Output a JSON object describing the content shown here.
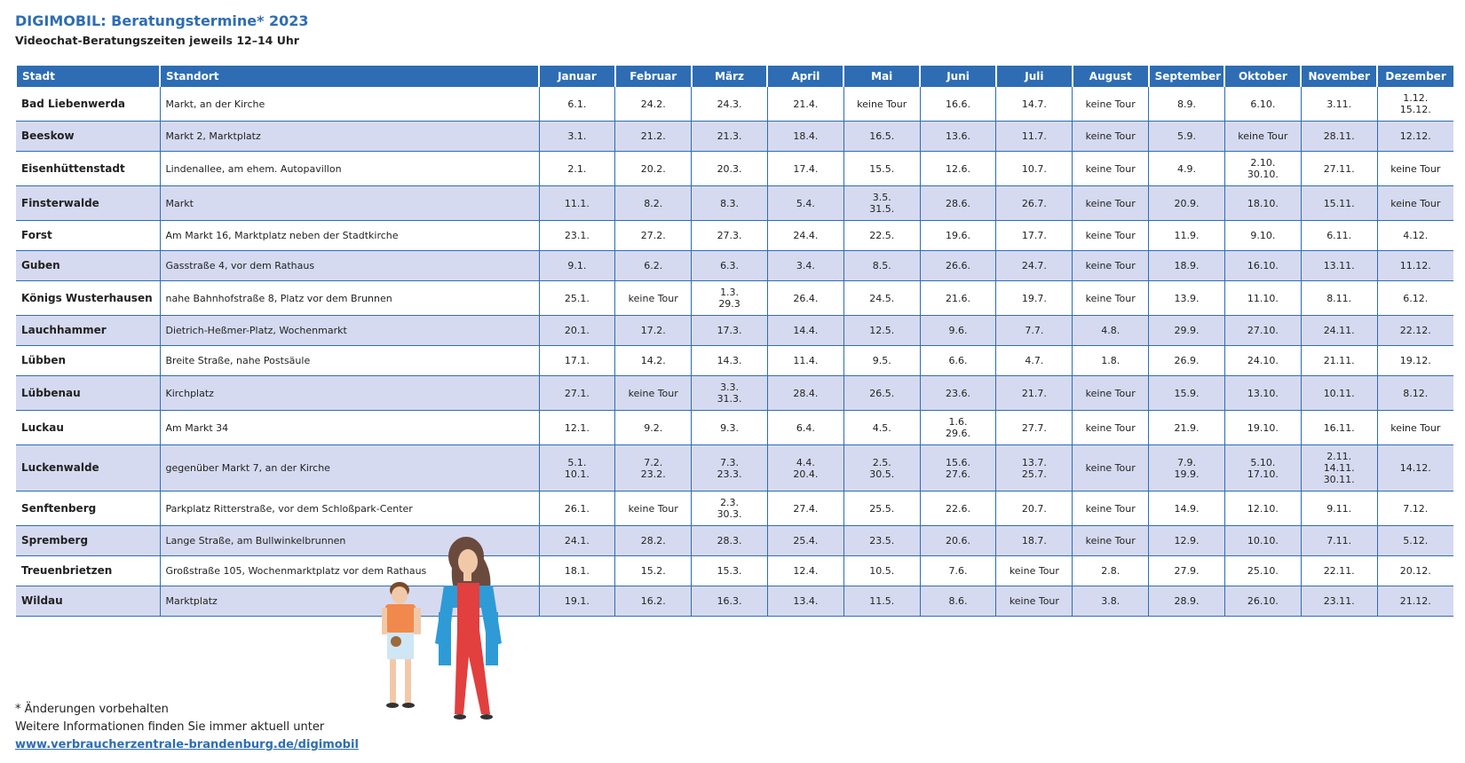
{
  "header": {
    "title": "DIGIMOBIL: Beratungstermine* 2023",
    "subtitle": "Videochat-Beratungszeiten jeweils 12–14 Uhr"
  },
  "table": {
    "columns": [
      "Stadt",
      "Standort",
      "Januar",
      "Februar",
      "März",
      "April",
      "Mai",
      "Juni",
      "Juli",
      "August",
      "September",
      "Oktober",
      "November",
      "Dezember"
    ],
    "rows": [
      [
        "Bad Liebenwerda",
        "Markt, an der Kirche",
        "6.1.",
        "24.2.",
        "24.3.",
        "21.4.",
        "keine Tour",
        "16.6.",
        "14.7.",
        "keine Tour",
        "8.9.",
        "6.10.",
        "3.11.",
        [
          "1.12.",
          "15.12."
        ]
      ],
      [
        "Beeskow",
        "Markt 2, Marktplatz",
        "3.1.",
        "21.2.",
        "21.3.",
        "18.4.",
        "16.5.",
        "13.6.",
        "11.7.",
        "keine Tour",
        "5.9.",
        "keine Tour",
        "28.11.",
        "12.12."
      ],
      [
        "Eisenhüttenstadt",
        "Lindenallee, am ehem. Autopavillon",
        "2.1.",
        "20.2.",
        "20.3.",
        "17.4.",
        "15.5.",
        "12.6.",
        "10.7.",
        "keine Tour",
        "4.9.",
        [
          "2.10.",
          "30.10."
        ],
        "27.11.",
        "keine Tour"
      ],
      [
        "Finsterwalde",
        "Markt",
        "11.1.",
        "8.2.",
        "8.3.",
        "5.4.",
        [
          "3.5.",
          "31.5."
        ],
        "28.6.",
        "26.7.",
        "keine Tour",
        "20.9.",
        "18.10.",
        "15.11.",
        "keine Tour"
      ],
      [
        "Forst",
        "Am Markt 16, Marktplatz neben der Stadtkirche",
        "23.1.",
        "27.2.",
        "27.3.",
        "24.4.",
        "22.5.",
        "19.6.",
        "17.7.",
        "keine Tour",
        "11.9.",
        "9.10.",
        "6.11.",
        "4.12."
      ],
      [
        "Guben",
        "Gasstraße 4, vor dem Rathaus",
        "9.1.",
        "6.2.",
        "6.3.",
        "3.4.",
        "8.5.",
        "26.6.",
        "24.7.",
        "keine Tour",
        "18.9.",
        "16.10.",
        "13.11.",
        "11.12."
      ],
      [
        "Königs Wusterhausen",
        "nahe Bahnhofstraße 8, Platz vor dem Brunnen",
        "25.1.",
        "keine Tour",
        [
          "1.3.",
          "29.3"
        ],
        "26.4.",
        "24.5.",
        "21.6.",
        "19.7.",
        "keine Tour",
        "13.9.",
        "11.10.",
        "8.11.",
        "6.12."
      ],
      [
        "Lauchhammer",
        "Dietrich-Heßmer-Platz, Wochenmarkt",
        "20.1.",
        "17.2.",
        "17.3.",
        "14.4.",
        "12.5.",
        "9.6.",
        "7.7.",
        "4.8.",
        "29.9.",
        "27.10.",
        "24.11.",
        "22.12."
      ],
      [
        "Lübben",
        "Breite Straße, nahe Postsäule",
        "17.1.",
        "14.2.",
        "14.3.",
        "11.4.",
        "9.5.",
        "6.6.",
        "4.7.",
        "1.8.",
        "26.9.",
        "24.10.",
        "21.11.",
        "19.12."
      ],
      [
        "Lübbenau",
        "Kirchplatz",
        "27.1.",
        "keine Tour",
        [
          "3.3.",
          "31.3."
        ],
        "28.4.",
        "26.5.",
        "23.6.",
        "21.7.",
        "keine Tour",
        "15.9.",
        "13.10.",
        "10.11.",
        "8.12."
      ],
      [
        "Luckau",
        "Am Markt 34",
        "12.1.",
        "9.2.",
        "9.3.",
        "6.4.",
        "4.5.",
        [
          "1.6.",
          "29.6."
        ],
        "27.7.",
        "keine Tour",
        "21.9.",
        "19.10.",
        "16.11.",
        "keine Tour"
      ],
      [
        "Luckenwalde",
        "gegenüber Markt 7, an der Kirche",
        [
          "5.1.",
          "10.1."
        ],
        [
          "7.2.",
          "23.2."
        ],
        [
          "7.3.",
          "23.3."
        ],
        [
          "4.4.",
          "20.4."
        ],
        [
          "2.5.",
          "30.5."
        ],
        [
          "15.6.",
          "27.6."
        ],
        [
          "13.7.",
          "25.7."
        ],
        "keine Tour",
        [
          "7.9.",
          "19.9."
        ],
        [
          "5.10.",
          "17.10."
        ],
        [
          "2.11.",
          "14.11.",
          "30.11."
        ],
        "14.12."
      ],
      [
        "Senftenberg",
        "Parkplatz Ritterstraße, vor dem Schloßpark-Center",
        "26.1.",
        "keine Tour",
        [
          "2.3.",
          "30.3."
        ],
        "27.4.",
        "25.5.",
        "22.6.",
        "20.7.",
        "keine Tour",
        "14.9.",
        "12.10.",
        "9.11.",
        "7.12."
      ],
      [
        "Spremberg",
        "Lange Straße, am Bullwinkelbrunnen",
        "24.1.",
        "28.2.",
        "28.3.",
        "25.4.",
        "23.5.",
        "20.6.",
        "18.7.",
        "keine Tour",
        "12.9.",
        "10.10.",
        "7.11.",
        "5.12."
      ],
      [
        "Treuenbrietzen",
        "Großstraße 105, Wochenmarktplatz vor dem Rathaus",
        "18.1.",
        "15.2.",
        "15.3.",
        "12.4.",
        "10.5.",
        "7.6.",
        "keine Tour",
        "2.8.",
        "27.9.",
        "25.10.",
        "22.11.",
        "20.12."
      ],
      [
        "Wildau",
        "Marktplatz",
        "19.1.",
        "16.2.",
        "16.3.",
        "13.4.",
        "11.5.",
        "8.6.",
        "keine Tour",
        "3.8.",
        "28.9.",
        "26.10.",
        "23.11.",
        "21.12."
      ]
    ]
  },
  "footer": {
    "note": "* Änderungen vorbehalten",
    "info": "Weitere Informationen finden Sie immer aktuell unter",
    "link": "www.verbraucherzentrale-brandenburg.de/digimobil"
  }
}
